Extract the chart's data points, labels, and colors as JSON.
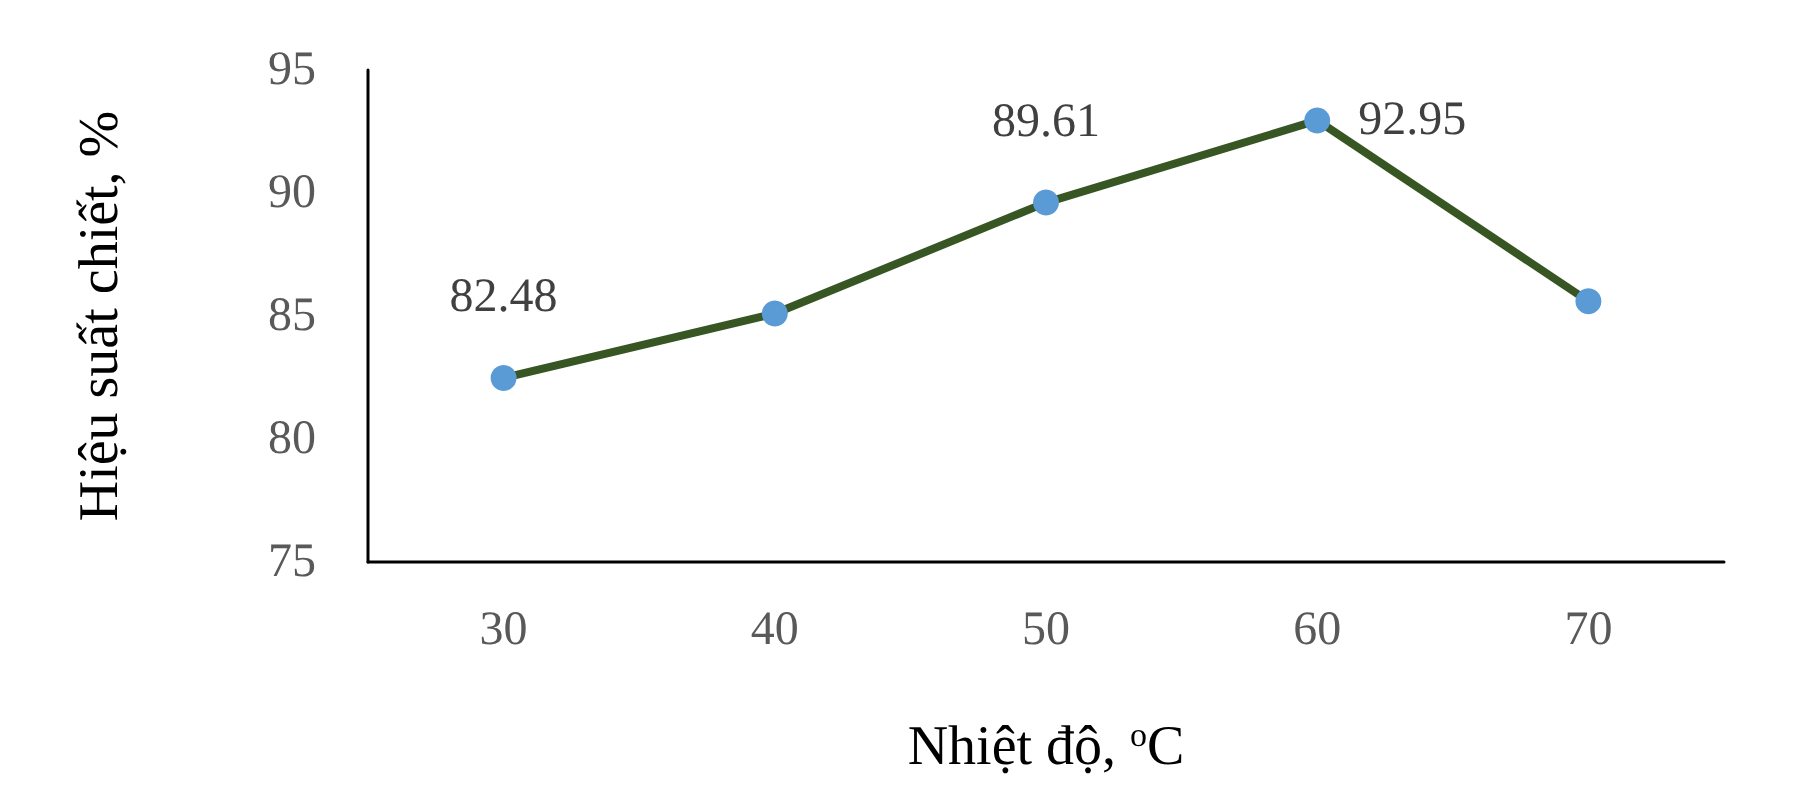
{
  "chart_data": {
    "type": "line",
    "xlabel": "Nhiệt độ, $^{o}$C",
    "ylabel": "Hiệu suất chiết, %",
    "categories": [
      "30",
      "40",
      "50",
      "60",
      "70"
    ],
    "series": [
      {
        "color": "#375623",
        "colors": [
          "#5b9bd5",
          "#5b9bd5",
          "#5b9bd5",
          "#5b9bd5",
          "#5b9bd5"
        ],
        "values": [
          82.48,
          85.1,
          89.61,
          92.95,
          85.6
        ],
        "value_labels": [
          "82.48",
          null,
          "89.61",
          "92.95",
          null
        ]
      }
    ],
    "ylim": [
      75,
      95
    ],
    "yticks": [
      75,
      80,
      85,
      90,
      95
    ],
    "grid": false,
    "marker": "circle",
    "line_style": "solid"
  }
}
